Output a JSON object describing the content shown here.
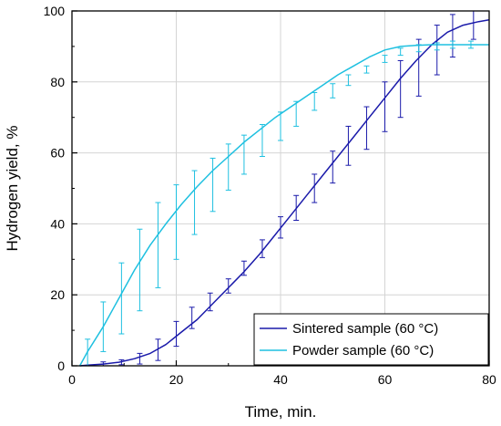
{
  "chart_data": {
    "type": "line",
    "xlabel": "Time, min.",
    "ylabel": "Hydrogen yield, %",
    "xlim": [
      0,
      80
    ],
    "ylim": [
      0,
      100
    ],
    "xticks": [
      "0",
      "20",
      "40",
      "60",
      "80"
    ],
    "yticks": [
      "0",
      "20",
      "40",
      "60",
      "80",
      "100"
    ],
    "grid": true,
    "legend_position": "bottom-right",
    "series": [
      {
        "name": "Sintered sample (60 °C)",
        "color": "#1a1aaa",
        "x": [
          1.5,
          3,
          6,
          9,
          12,
          15,
          18,
          21,
          24,
          27,
          30,
          33,
          36,
          39,
          42,
          45,
          48,
          51,
          54,
          57,
          60,
          63,
          66,
          69,
          72,
          75,
          78,
          80
        ],
        "y": [
          0,
          0.2,
          0.5,
          1.0,
          2.0,
          3.5,
          6.0,
          9.5,
          13.0,
          17.5,
          22.0,
          26.5,
          31.5,
          37.0,
          42.5,
          48.0,
          53.5,
          59.0,
          64.5,
          70.0,
          75.5,
          81.0,
          86.0,
          90.5,
          94.0,
          96.0,
          97.0,
          97.5
        ]
      },
      {
        "name": "Powder sample (60 °C)",
        "color": "#1ec0e0",
        "x": [
          1.5,
          3,
          6,
          9,
          12,
          15,
          18,
          21,
          24,
          27,
          30,
          33,
          36,
          39,
          42,
          45,
          48,
          51,
          54,
          57,
          60,
          63,
          66,
          69,
          72,
          75,
          78,
          80
        ],
        "y": [
          0,
          4,
          11,
          19,
          27,
          34,
          40,
          45.5,
          50.5,
          55,
          59,
          63,
          66.5,
          70,
          73,
          76,
          79,
          82,
          84.5,
          87,
          89,
          90,
          90.3,
          90.5,
          90.5,
          90.5,
          90.5,
          90.5
        ]
      }
    ],
    "error_bars": [
      {
        "series": "Sintered sample (60 °C)",
        "x": [
          6,
          9.5,
          13,
          16.5,
          20,
          23,
          26.5,
          30,
          33,
          36.5,
          40,
          43,
          46.5,
          50,
          53,
          56.5,
          60,
          63,
          66.5,
          70,
          73,
          77
        ],
        "y": [
          0.5,
          1.0,
          2.0,
          4.5,
          9.0,
          13.5,
          18.0,
          22.5,
          27.5,
          33.0,
          39.0,
          44.5,
          50.0,
          56.0,
          62.0,
          67.0,
          73.0,
          78.0,
          84.0,
          89.0,
          93.0,
          97.0
        ],
        "err": [
          0.6,
          0.7,
          1.5,
          3.0,
          3.5,
          3.0,
          2.5,
          2.0,
          2.0,
          2.5,
          3.0,
          3.5,
          4.0,
          4.5,
          5.5,
          6.0,
          7.0,
          8.0,
          8.0,
          7.0,
          6.0,
          5.0
        ]
      },
      {
        "series": "Powder sample (60 °C)",
        "x": [
          3,
          6,
          9.5,
          13,
          16.5,
          20,
          23.5,
          27,
          30,
          33,
          36.5,
          40,
          43,
          46.5,
          50,
          53,
          56.5,
          60,
          63,
          66.5,
          70,
          73,
          76.5
        ],
        "y": [
          3,
          11,
          19,
          27,
          34,
          40.5,
          46,
          51,
          56,
          59.5,
          63.5,
          67.5,
          71,
          74.5,
          77.5,
          80.5,
          83.5,
          86.5,
          88.5,
          89.5,
          90,
          90.5,
          90.5
        ],
        "err": [
          4.5,
          7.0,
          10.0,
          11.5,
          12.0,
          10.5,
          9.0,
          7.5,
          6.5,
          5.5,
          4.5,
          4.0,
          3.5,
          2.5,
          2.0,
          1.5,
          1.0,
          1.0,
          1.0,
          1.0,
          1.0,
          1.0,
          1.0
        ]
      }
    ]
  }
}
